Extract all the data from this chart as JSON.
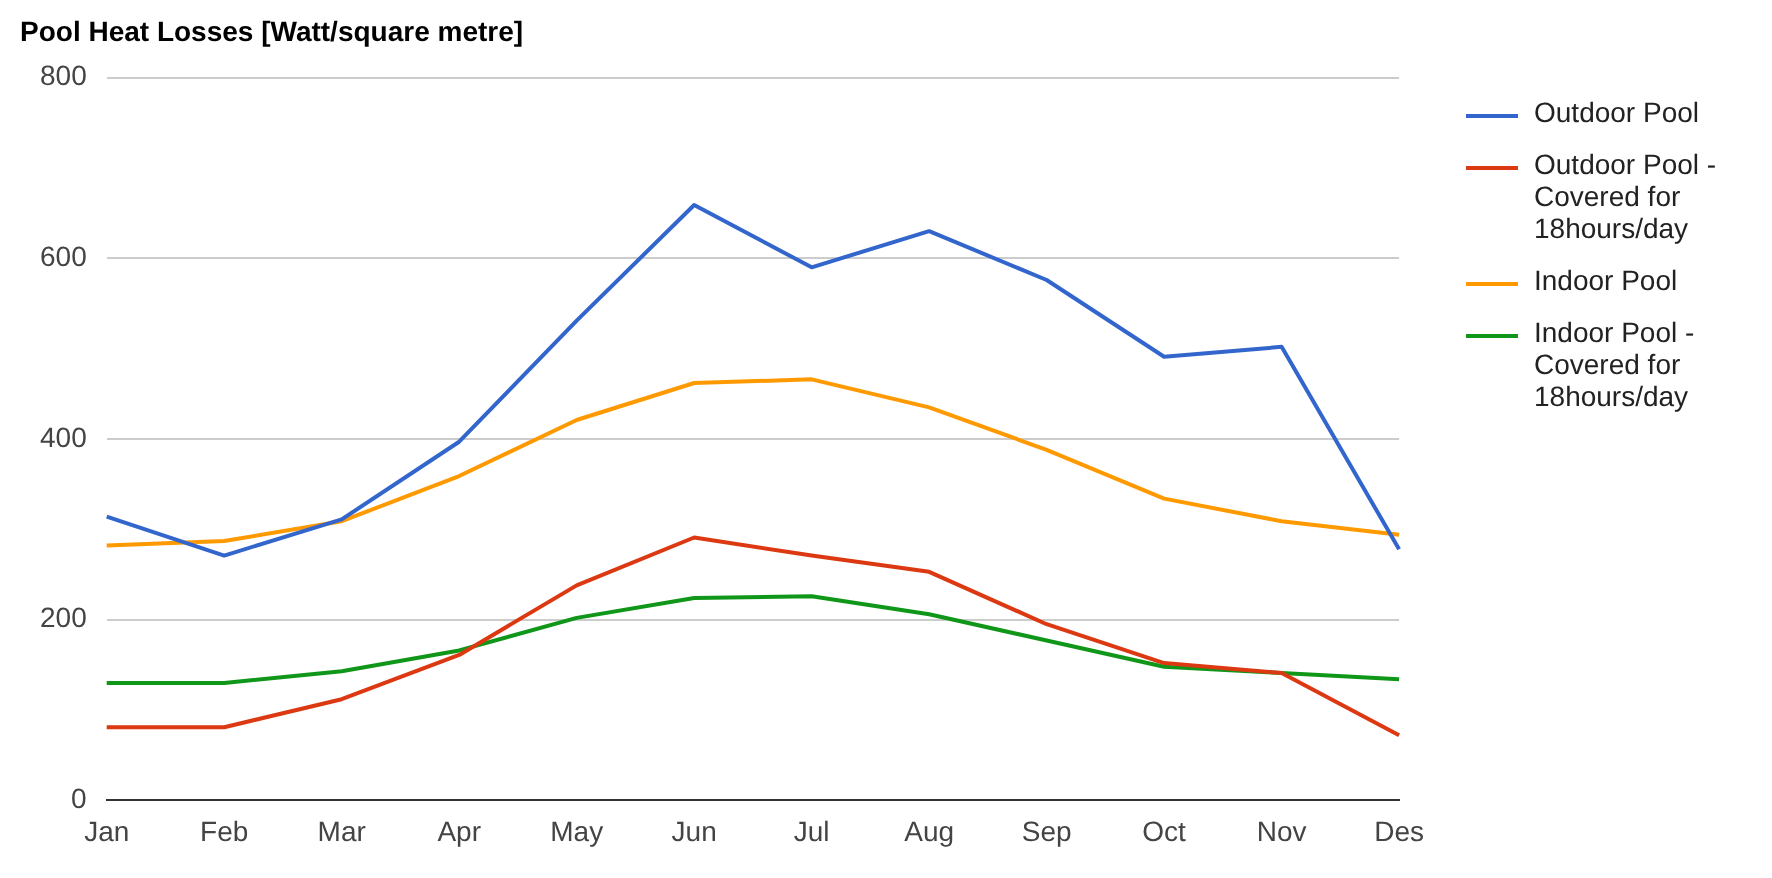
{
  "chart_data": {
    "type": "line",
    "title": "Pool Heat Losses [Watt/square metre]",
    "categories": [
      "Jan",
      "Feb",
      "Mar",
      "Apr",
      "May",
      "Jun",
      "Jul",
      "Aug",
      "Sep",
      "Oct",
      "Nov",
      "Des"
    ],
    "series": [
      {
        "name": "Outdoor Pool",
        "color": "#3366cc",
        "values": [
          314,
          271,
          311,
          397,
          531,
          659,
          590,
          630,
          576,
          491,
          502,
          278
        ]
      },
      {
        "name": "Outdoor Pool - Covered for 18hours/day",
        "color": "#dc3912",
        "values": [
          81,
          81,
          112,
          161,
          238,
          291,
          271,
          253,
          195,
          152,
          141,
          72
        ]
      },
      {
        "name": "Indoor Pool",
        "color": "#ff9900",
        "values": [
          282,
          287,
          309,
          359,
          421,
          462,
          466,
          435,
          388,
          334,
          309,
          294
        ]
      },
      {
        "name": "Indoor Pool - Covered for 18hours/day",
        "color": "#109618",
        "values": [
          130,
          130,
          143,
          166,
          202,
          224,
          226,
          206,
          177,
          148,
          141,
          134
        ]
      }
    ],
    "ylim": [
      0,
      800
    ],
    "yticks": [
      0,
      200,
      400,
      600,
      800
    ],
    "grid": "y",
    "legend": "right",
    "marker": "none",
    "line_style": "solid"
  }
}
